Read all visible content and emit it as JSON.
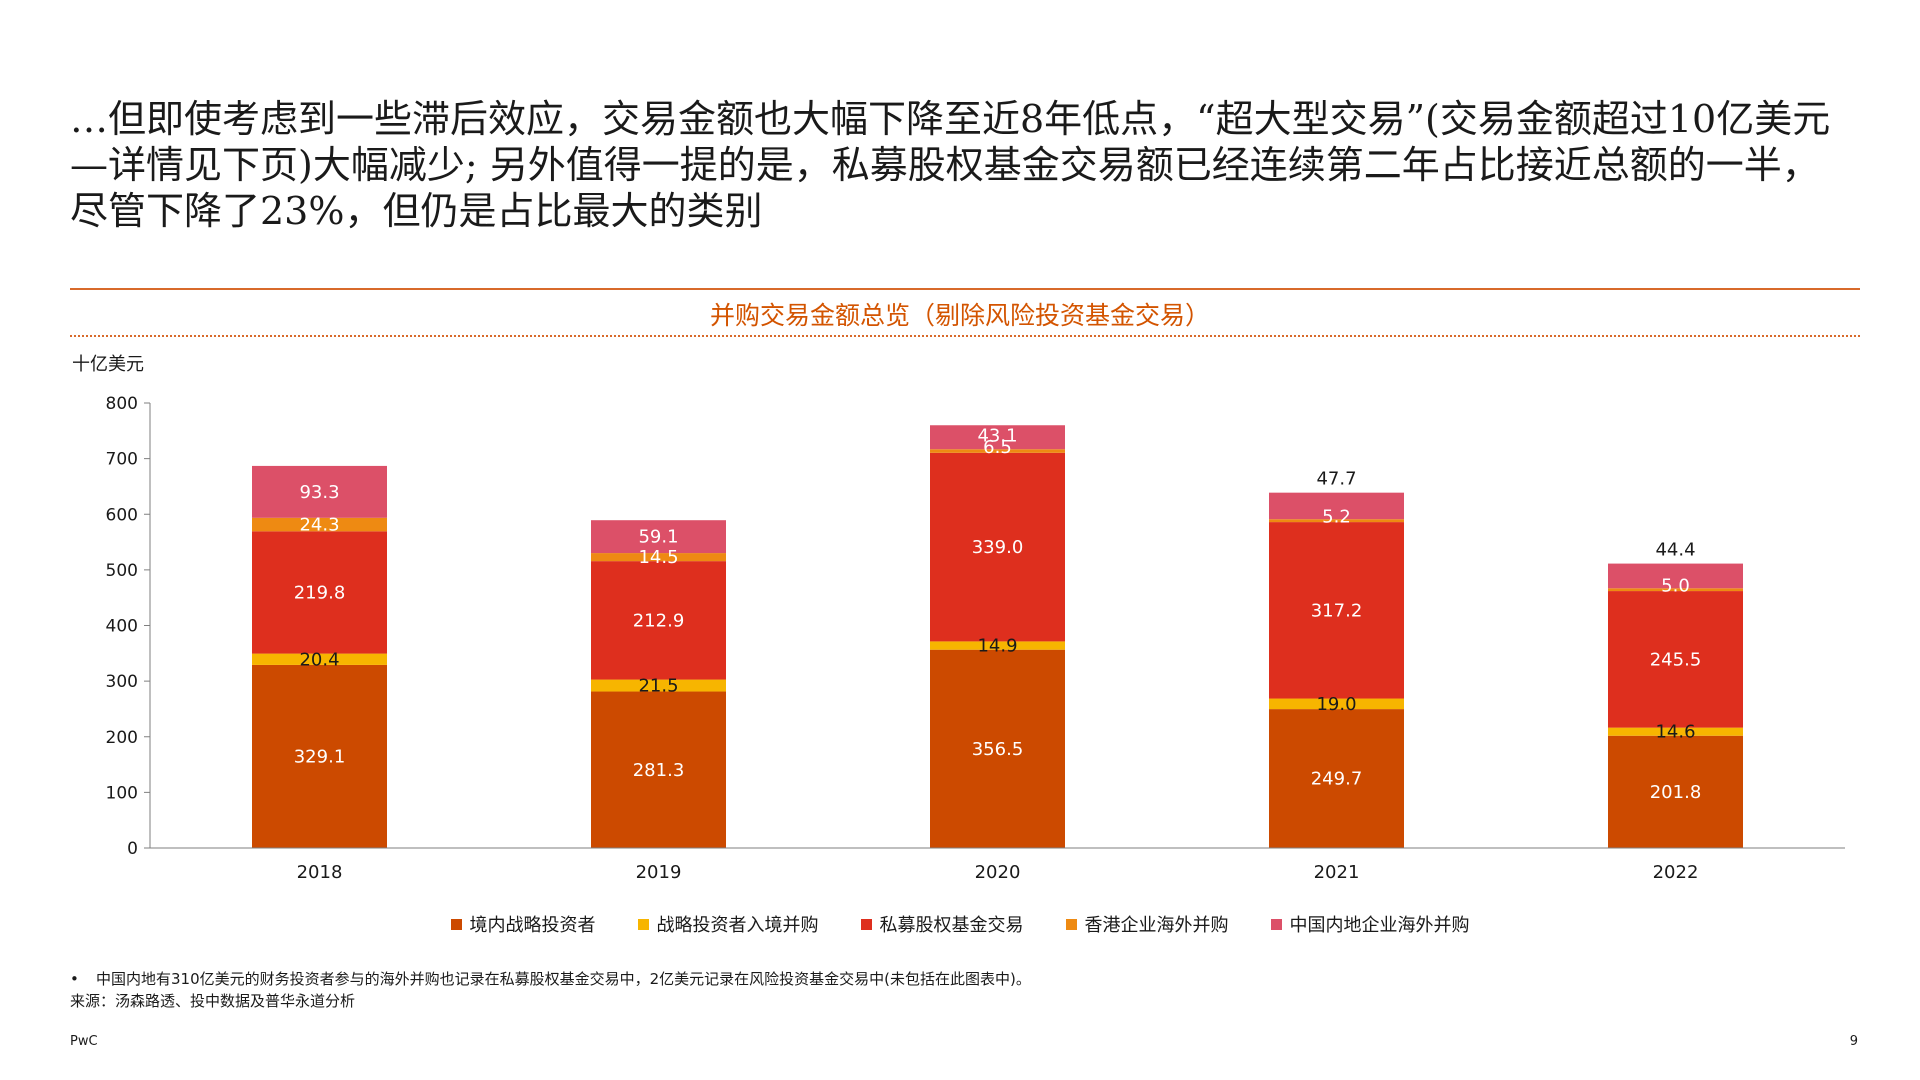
{
  "headline": "…但即使考虑到一些滞后效应，交易金额也大幅下降至近8年低点，“超大型交易”(交易金额超过10亿美元—详情见下页)大幅减少; 另外值得一提的是，私募股权基金交易额已经连续第二年占比接近总额的一半，尽管下降了23%，但仍是占比最大的类别",
  "footnote": "中国内地有310亿美元的财务投资者参与的海外并购也记录在私募股权基金交易中，2亿美元记录在风险投资基金交易中(未包括在此图表中)。",
  "source": "来源：汤森路透、投中数据及普华永道分析",
  "footer": {
    "brand": "PwC",
    "page": "9"
  },
  "colors": {
    "accent": "#d35400",
    "series": [
      "#cc4a00",
      "#f7b500",
      "#de2f1e",
      "#ee8a12",
      "#dc5068"
    ]
  },
  "chart_data": {
    "type": "bar",
    "stacked": true,
    "title": "并购交易金额总览（剔除风险投资基金交易）",
    "ylabel": "十亿美元",
    "ylim": [
      0,
      800
    ],
    "yticks": [
      0,
      100,
      200,
      300,
      400,
      500,
      600,
      700,
      800
    ],
    "categories": [
      "2018",
      "2019",
      "2020",
      "2021",
      "2022"
    ],
    "legend_position": "bottom",
    "series": [
      {
        "name": "境内战略投资者",
        "values": [
          329.1,
          281.3,
          356.5,
          249.7,
          201.8
        ]
      },
      {
        "name": "战略投资者入境并购",
        "values": [
          20.4,
          21.5,
          14.9,
          19.0,
          14.6
        ]
      },
      {
        "name": "私募股权基金交易",
        "values": [
          219.8,
          212.9,
          339.0,
          317.2,
          245.5
        ]
      },
      {
        "name": "香港企业海外并购",
        "values": [
          24.3,
          14.5,
          6.5,
          5.2,
          5.0
        ]
      },
      {
        "name": "中国内地企业海外并购",
        "values": [
          93.3,
          59.1,
          43.1,
          47.7,
          44.4
        ]
      }
    ]
  }
}
